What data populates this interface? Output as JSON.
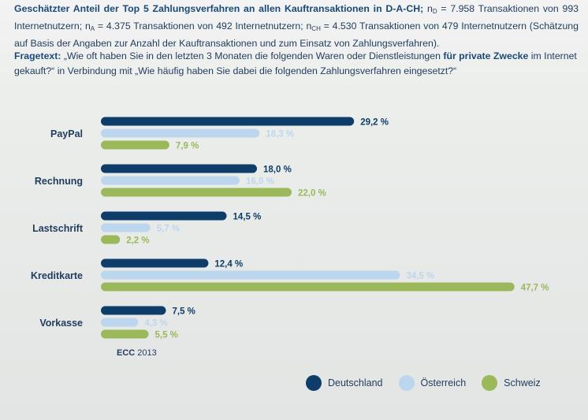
{
  "header": {
    "bold": "Geschätzter Anteil der Top 5 Zahlungsverfahren an allen Kauftransaktionen in D-A-CH;",
    "n_d_prefix": " n",
    "n_d_sub": "D",
    "n_d_text": " = 7.958 Transaktionen von 993 Internetnutzern; n",
    "n_a_sub": "A",
    "n_a_text": " = 4.375 Transaktionen von 492 Internetnutzern; n",
    "n_ch_sub": "CH",
    "n_ch_text": " = 4.530 Transaktionen von 479 Internetnutzern (Schätzung auf Basis der Angaben zur Anzahl der Kauftransaktionen und zum Einsatz von Zahlungsverfahren)."
  },
  "question": {
    "lead": "Fragetext:",
    "part1": " „Wie oft haben Sie in den letzten 3 Monaten die folgenden Waren oder Dienstleistungen ",
    "strong": "für private Zwecke",
    "part2": " im Internet gekauft?“ in Verbindung mit „Wie häufig haben Sie dabei die folgenden Zahlungsverfahren eingesetzt?“"
  },
  "source": {
    "org": "ECC",
    "year": " 2013"
  },
  "colors": {
    "deutschland": "#0f3d69",
    "oesterreich": "#bcd6ee",
    "schweiz": "#9bb85a"
  },
  "chart_data": {
    "type": "bar",
    "orientation": "horizontal",
    "categories": [
      "PayPal",
      "Rechnung",
      "Lastschrift",
      "Kreditkarte",
      "Vorkasse"
    ],
    "series": [
      {
        "name": "Deutschland",
        "values": [
          29.2,
          18.0,
          14.5,
          12.4,
          7.5
        ],
        "labels": [
          "29,2 %",
          "18,0 %",
          "14,5 %",
          "12,4 %",
          "7,5 %"
        ]
      },
      {
        "name": "Österreich",
        "values": [
          18.3,
          16.0,
          5.7,
          34.5,
          4.3
        ],
        "labels": [
          "18,3 %",
          "16,0 %",
          "5,7 %",
          "34,5 %",
          "4,3 %"
        ]
      },
      {
        "name": "Schweiz",
        "values": [
          7.9,
          22.0,
          2.2,
          47.7,
          5.5
        ],
        "labels": [
          "7,9 %",
          "22,0 %",
          "2,2 %",
          "47,7 %",
          "5,5 %"
        ]
      }
    ],
    "unit": "%",
    "legend": "bottom-right"
  }
}
